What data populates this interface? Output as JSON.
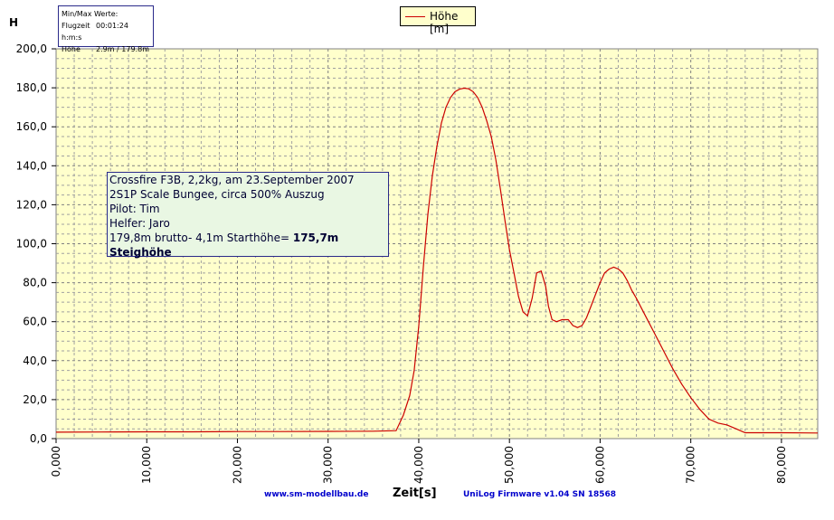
{
  "ui": {
    "axis_letter": "H",
    "minmax": {
      "title": "Min/Max Werte:",
      "rows": [
        {
          "key": "Flugzeit",
          "value": "00:01:24 h:m:s"
        },
        {
          "key": "Höhe",
          "value": "2.9m / 179.8m"
        }
      ]
    },
    "info": {
      "line1": "Crossfire F3B, 2,2kg, am 23.September 2007",
      "line2": "2S1P Scale Bungee, circa 500% Auszug",
      "line3": "Pilot: Tim",
      "line4": "Helfer: Jaro",
      "line5_prefix": "179,8m brutto- 4,1m Starthöhe= ",
      "line5_bold": "175,7m Steighöhe"
    },
    "footer_link": "www.sm-modellbau.de",
    "footer_firmware": "UniLog Firmware v1.04 SN 18568"
  },
  "chart_data": {
    "type": "line",
    "xlabel": "Zeit[s]",
    "ylabel": "",
    "xlim": [
      0,
      84
    ],
    "ylim": [
      0,
      200
    ],
    "grid": true,
    "legend": "top-center",
    "plot_bg": "#ffffcc",
    "x_ticks": [
      0,
      10,
      20,
      30,
      40,
      50,
      60,
      70,
      80
    ],
    "x_tick_labels": [
      "0,000",
      "10,000",
      "20,000",
      "30,000",
      "40,000",
      "50,000",
      "60,000",
      "70,000",
      "80,000"
    ],
    "y_ticks": [
      0,
      20,
      40,
      60,
      80,
      100,
      120,
      140,
      160,
      180,
      200
    ],
    "y_tick_labels": [
      "0,0",
      "20,0",
      "40,0",
      "60,0",
      "80,0",
      "100,0",
      "120,0",
      "140,0",
      "160,0",
      "180,0",
      "200,0"
    ],
    "series": [
      {
        "name": "Höhe [m]",
        "color": "#cc0000",
        "x": [
          0,
          5,
          10,
          15,
          20,
          25,
          30,
          35,
          37.5,
          38.3,
          39,
          39.5,
          40,
          40.5,
          41,
          41.5,
          42,
          42.5,
          43,
          43.5,
          44,
          44.5,
          45,
          45.5,
          46,
          46.5,
          47,
          47.5,
          48,
          48.5,
          49,
          49.5,
          50,
          50.5,
          51,
          51.5,
          52,
          52.5,
          53,
          53.5,
          54,
          54.3,
          54.7,
          55.2,
          55.8,
          56.5,
          57,
          57.5,
          58,
          58.5,
          59,
          59.5,
          60,
          60.5,
          61,
          61.5,
          62,
          62.5,
          63,
          63.5,
          64,
          65,
          66,
          67,
          68,
          69,
          70,
          71,
          72,
          73,
          74,
          75,
          76,
          77,
          78,
          80,
          84
        ],
        "y": [
          3.3,
          3.4,
          3.5,
          3.5,
          3.6,
          3.6,
          3.7,
          3.8,
          4.1,
          12,
          22,
          35,
          58,
          88,
          115,
          135,
          150,
          162,
          170,
          175,
          178,
          179.3,
          179.8,
          179.5,
          178,
          175,
          170,
          163,
          155,
          143,
          128,
          112,
          97,
          85,
          73,
          65,
          63,
          72,
          85,
          86,
          78,
          68,
          61,
          60,
          61,
          61,
          58,
          57,
          58,
          62,
          68,
          74,
          80,
          85,
          87,
          88,
          87,
          85,
          81,
          76,
          72,
          63,
          54,
          45,
          36,
          28,
          21,
          15,
          10,
          8,
          7,
          5,
          3,
          3,
          3,
          3,
          2.9
        ]
      }
    ]
  }
}
